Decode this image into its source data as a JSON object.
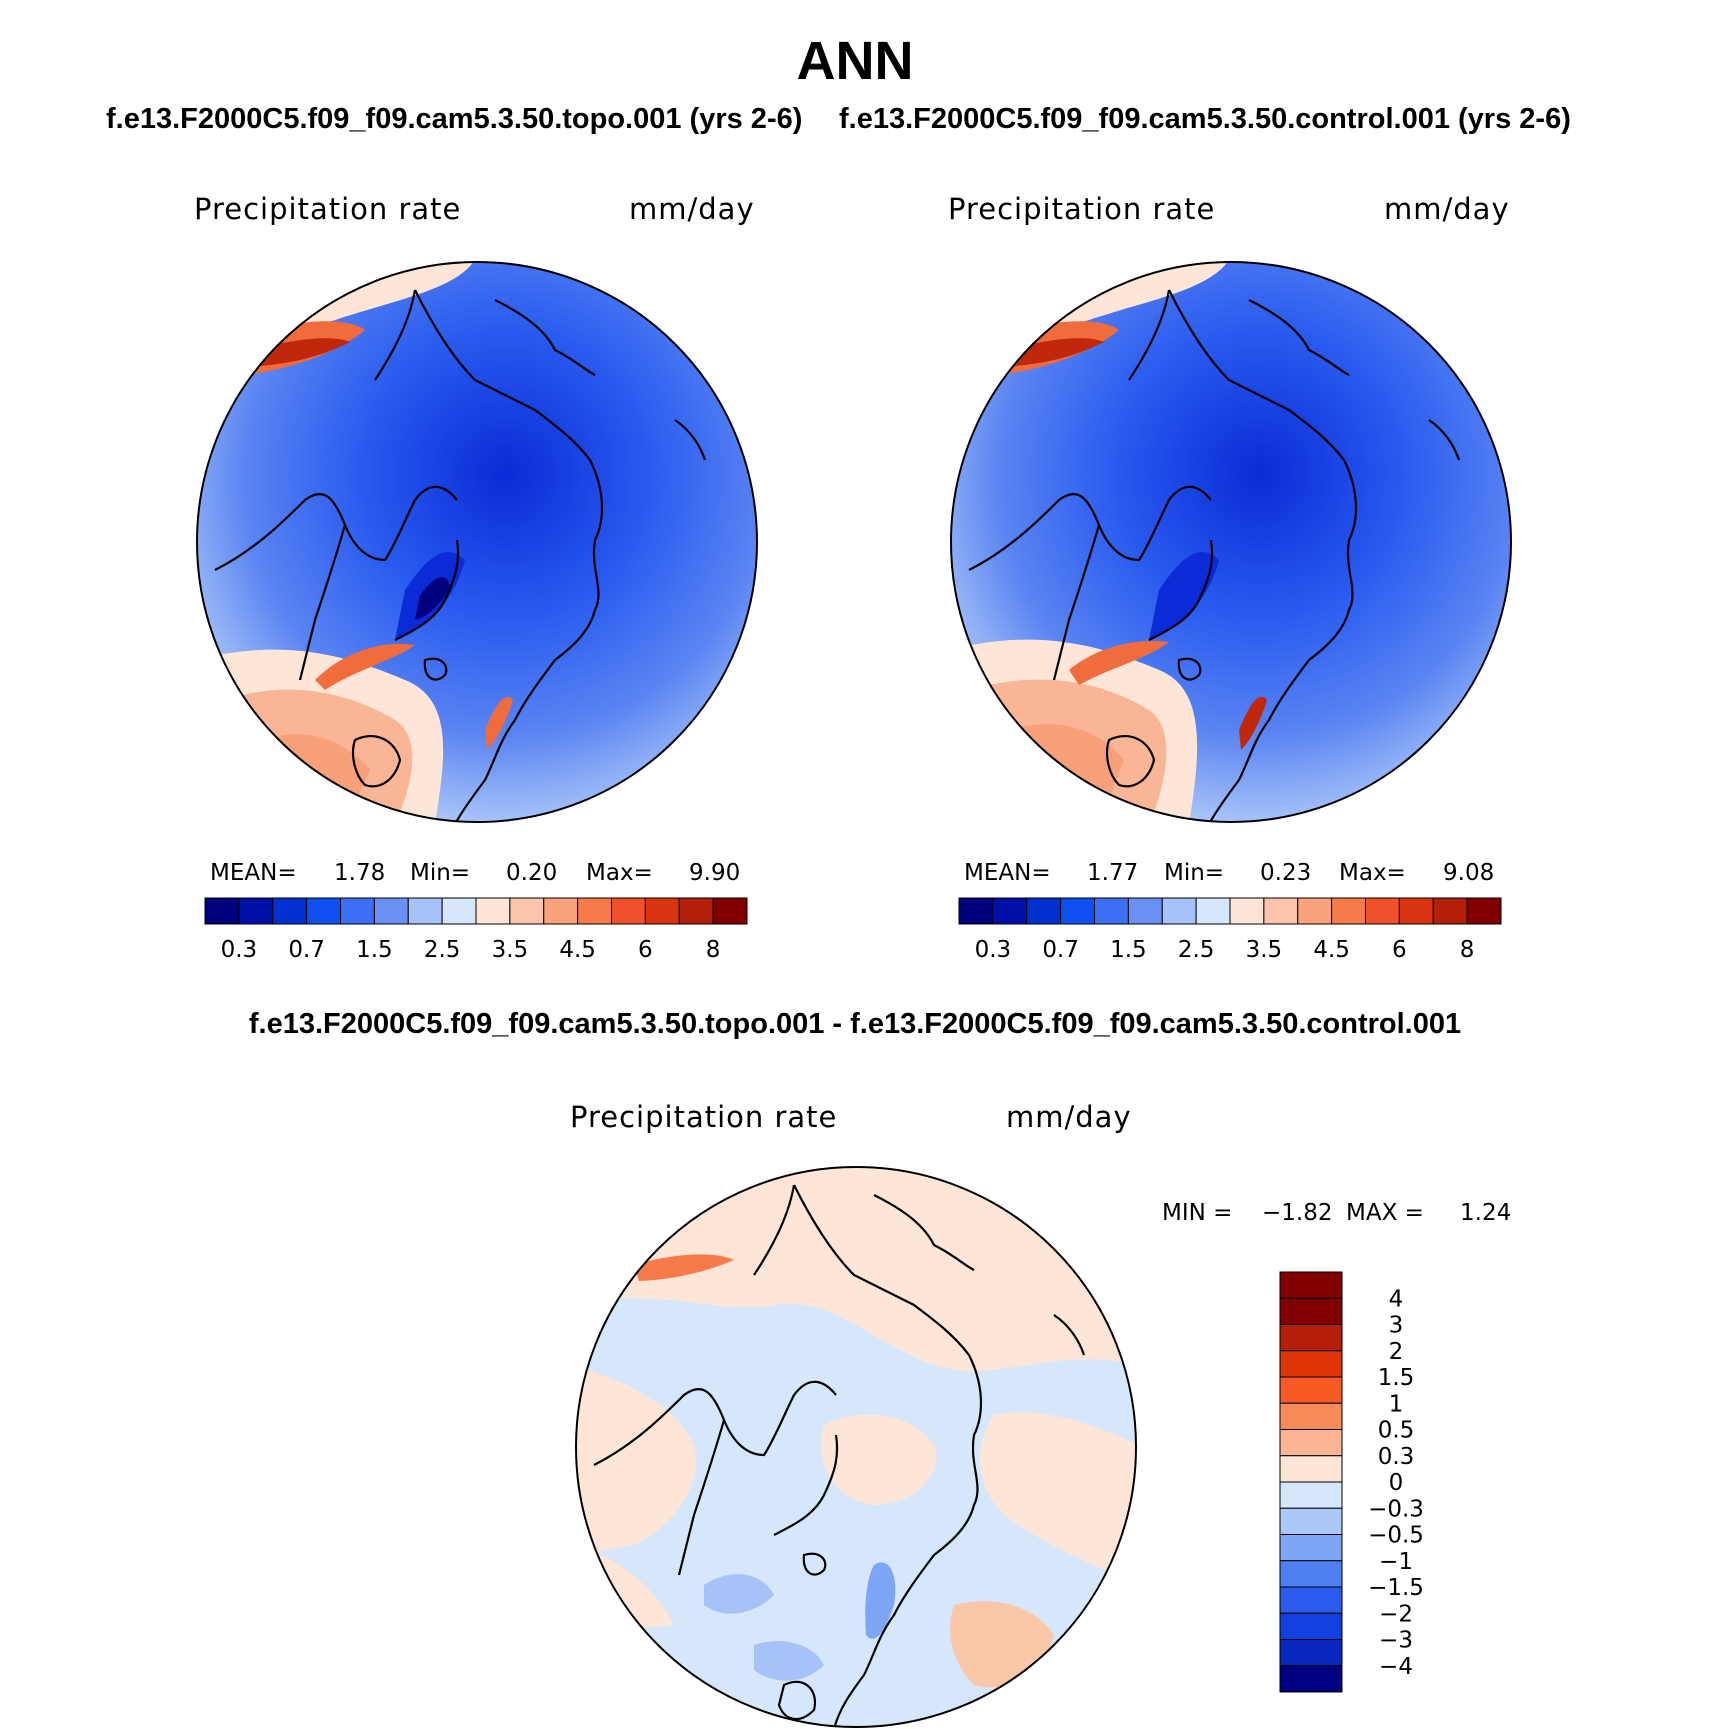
{
  "figure_title": "ANN",
  "panels": [
    {
      "case_title": "f.e13.F2000C5.f09_f09.cam5.3.50.topo.001 (yrs 2-6)",
      "variable": "Precipitation rate",
      "units": "mm/day",
      "stats": {
        "mean_label": "MEAN=",
        "mean": "1.78",
        "min_label": "Min=",
        "min": "0.20",
        "max_label": "Max=",
        "max": "9.90"
      }
    },
    {
      "case_title": "f.e13.F2000C5.f09_f09.cam5.3.50.control.001 (yrs 2-6)",
      "variable": "Precipitation rate",
      "units": "mm/day",
      "stats": {
        "mean_label": "MEAN=",
        "mean": "1.77",
        "min_label": "Min=",
        "min": "0.23",
        "max_label": "Max=",
        "max": "9.08"
      }
    }
  ],
  "abs_colorbar": {
    "colors": [
      "#00007f",
      "#0010a8",
      "#0030d0",
      "#1050f0",
      "#3c6ff5",
      "#6990f5",
      "#a6c2f8",
      "#d6e7fb",
      "#fde6d8",
      "#fcc5ab",
      "#faa27c",
      "#f77b4a",
      "#f0502a",
      "#d9330f",
      "#b31f08",
      "#800000"
    ],
    "tick_labels": [
      "0.3",
      "0.7",
      "1.5",
      "2.5",
      "3.5",
      "4.5",
      "6",
      "8"
    ]
  },
  "difference_panel": {
    "title": "f.e13.F2000C5.f09_f09.cam5.3.50.topo.001 - f.e13.F2000C5.f09_f09.cam5.3.50.control.001",
    "variable": "Precipitation rate",
    "units": "mm/day",
    "min_label": "MIN =",
    "min": "−1.82",
    "max_label": "MAX =",
    "max": "1.24",
    "colorbar": {
      "colors": [
        "#800000",
        "#b31f08",
        "#e03508",
        "#f75a25",
        "#f98a5a",
        "#fbb494",
        "#fde6d8",
        "#d6e7fb",
        "#aac8f8",
        "#7ea5f6",
        "#4f7ff2",
        "#2a5cf0",
        "#1040e0",
        "#0828c0",
        "#000080"
      ],
      "tick_labels": [
        "4",
        "3",
        "2",
        "1.5",
        "1",
        "0.5",
        "0.3",
        "0",
        "−0.3",
        "−0.5",
        "−1",
        "−1.5",
        "−2",
        "−3",
        "−4"
      ]
    }
  },
  "map_colors": {
    "deep_blue": "#0a2bd6",
    "blue": "#2a5cf0",
    "mid_blue": "#5b85f2",
    "light_blue": "#a6c2f8",
    "pale_blue": "#d6e7fb",
    "pale_red": "#fde6d8",
    "light_red": "#f9b596",
    "red": "#f06c3c",
    "dark_red": "#c0280c"
  }
}
